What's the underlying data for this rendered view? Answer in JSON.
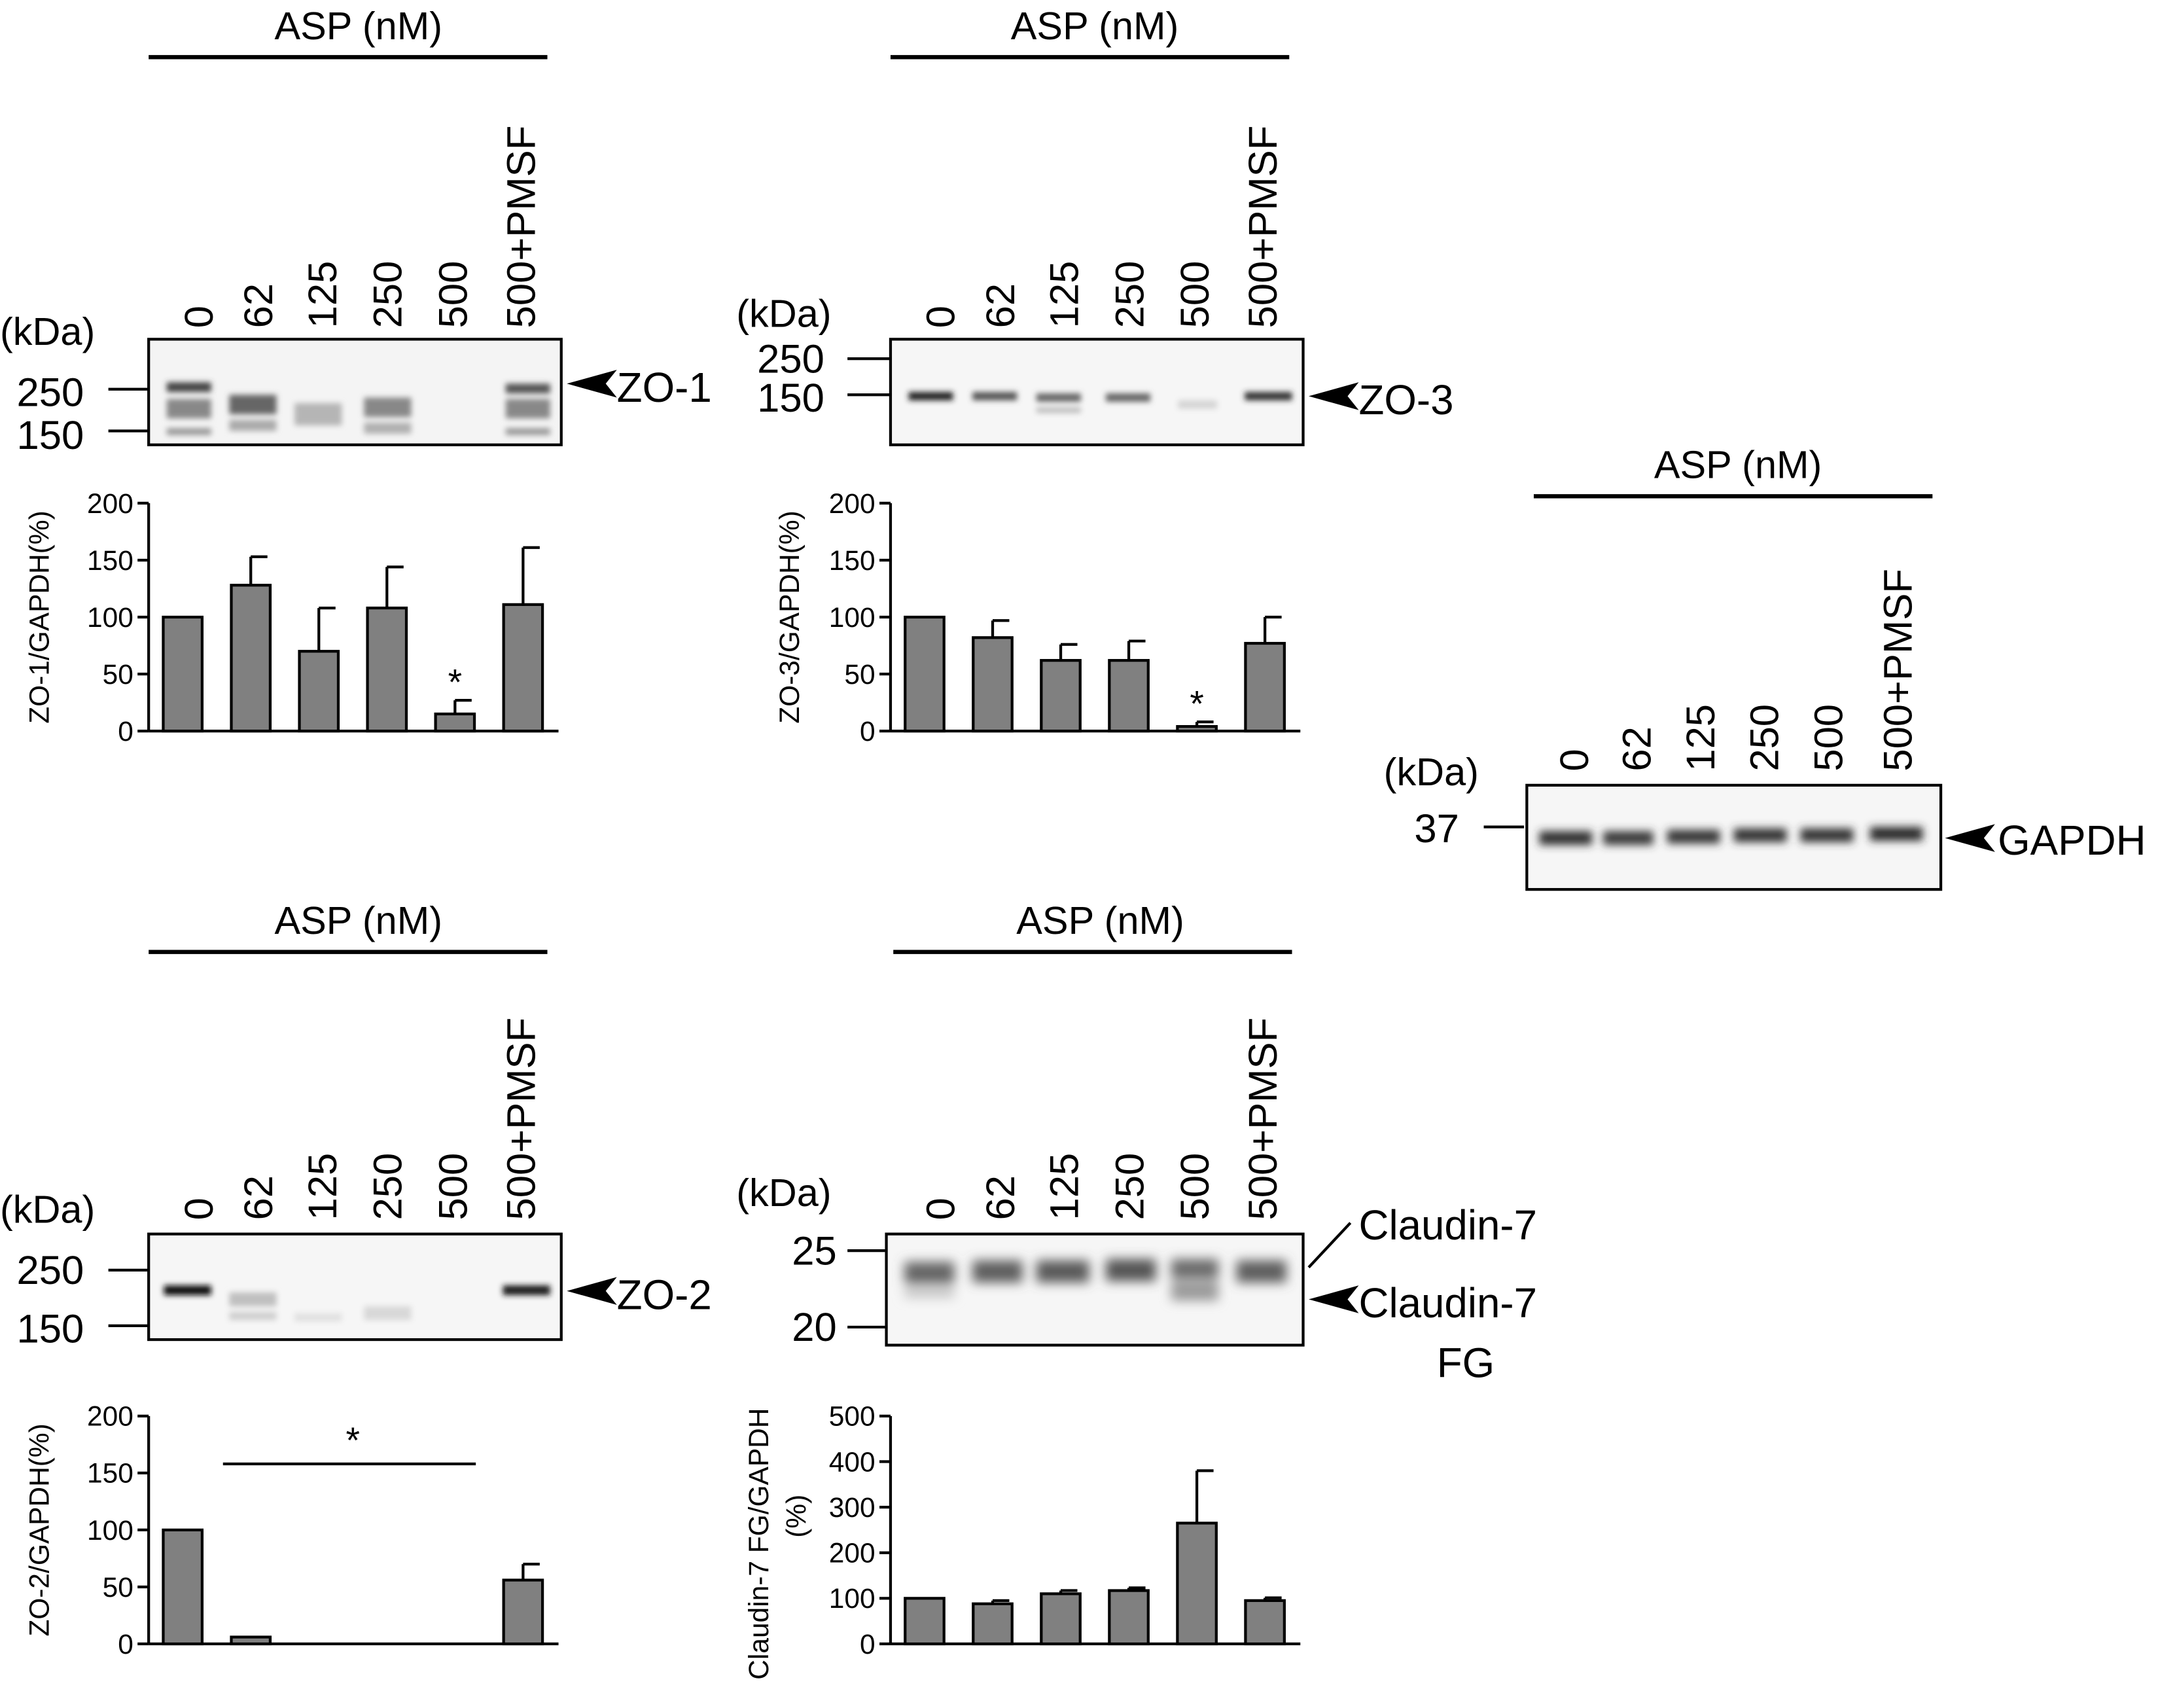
{
  "panel_labels": {
    "header": "ASP (nM)",
    "lanes": [
      "0",
      "62",
      "125",
      "250",
      "500",
      "500+PMSF"
    ],
    "kda": "(kDa)"
  },
  "blots": {
    "zo1": {
      "markers": [
        "250",
        "150"
      ],
      "band": "ZO-1"
    },
    "zo3": {
      "markers": [
        "250",
        "150"
      ],
      "band": "ZO-3"
    },
    "gapdh": {
      "markers": [
        "37"
      ],
      "band": "GAPDH"
    },
    "zo2": {
      "markers": [
        "250",
        "150"
      ],
      "band": "ZO-2"
    },
    "cldn7": {
      "markers": [
        "25",
        "20"
      ],
      "band_upper": "Claudin-7",
      "band_lower_1": "Claudin-7",
      "band_lower_2": "FG"
    }
  },
  "chart_data": [
    {
      "id": "zo1",
      "type": "bar",
      "categories": [
        "0",
        "62",
        "125",
        "250",
        "500",
        "500+PMSF"
      ],
      "values": [
        100,
        128,
        70,
        108,
        15,
        111
      ],
      "errors": [
        0,
        25,
        38,
        36,
        12,
        50
      ],
      "ylabel": "ZO-1/GAPDH(%)",
      "ylim": [
        0,
        200
      ],
      "yticks": [
        "0",
        "50",
        "100",
        "150",
        "200"
      ],
      "significance": [
        {
          "index": 4,
          "label": "*"
        }
      ],
      "bar_color": "#808080"
    },
    {
      "id": "zo3",
      "type": "bar",
      "categories": [
        "0",
        "62",
        "125",
        "250",
        "500",
        "500+PMSF"
      ],
      "values": [
        100,
        82,
        62,
        62,
        4,
        77
      ],
      "errors": [
        0,
        15,
        14,
        17,
        4,
        23
      ],
      "ylabel": "ZO-3/GAPDH(%)",
      "ylim": [
        0,
        200
      ],
      "yticks": [
        "0",
        "50",
        "100",
        "150",
        "200"
      ],
      "significance": [
        {
          "index": 4,
          "label": "*"
        }
      ],
      "bar_color": "#808080"
    },
    {
      "id": "zo2",
      "type": "bar",
      "categories": [
        "0",
        "62",
        "125",
        "250",
        "500",
        "500+PMSF"
      ],
      "values": [
        100,
        6,
        0,
        0,
        0,
        56
      ],
      "errors": [
        0,
        0,
        0,
        0,
        0,
        14
      ],
      "ylabel": "ZO-2/GAPDH(%)",
      "ylim": [
        0,
        200
      ],
      "yticks": [
        "0",
        "50",
        "100",
        "150",
        "200"
      ],
      "significance_bar": {
        "from": 1,
        "to": 4,
        "label": "*"
      },
      "bar_color": "#808080"
    },
    {
      "id": "cldn7",
      "type": "bar",
      "categories": [
        "0",
        "62",
        "125",
        "250",
        "500",
        "500+PMSF"
      ],
      "values": [
        100,
        88,
        110,
        117,
        265,
        95
      ],
      "errors": [
        0,
        7,
        7,
        6,
        115,
        6
      ],
      "ylabel_line1": "Claudin-7 FG/GAPDH",
      "ylabel_line2": "(%)",
      "ylim": [
        0,
        500
      ],
      "yticks": [
        "0",
        "100",
        "200",
        "300",
        "400",
        "500"
      ],
      "bar_color": "#808080"
    }
  ]
}
